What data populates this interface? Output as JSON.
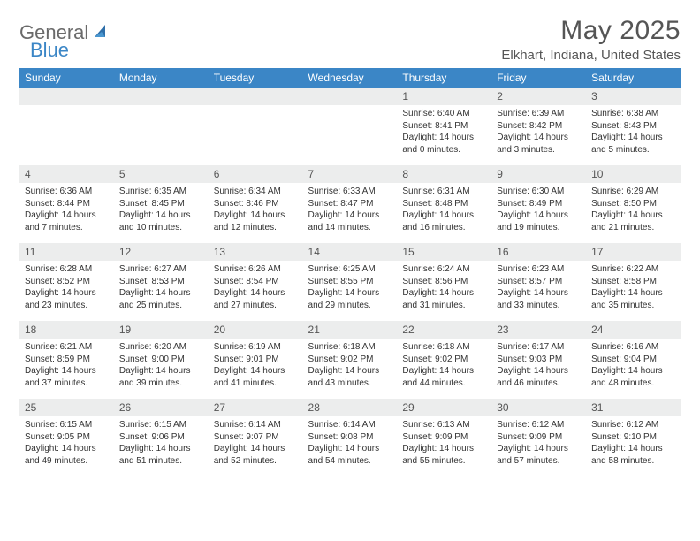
{
  "brand": {
    "part1": "General",
    "part2": "Blue"
  },
  "title": "May 2025",
  "location": "Elkhart, Indiana, United States",
  "colors": {
    "header_bg": "#3b86c6",
    "header_text": "#ffffff",
    "daynum_bg": "#eceded",
    "body_text": "#333333",
    "title_text": "#555555",
    "logo_general": "#6a6a6a",
    "logo_blue": "#3b86c6",
    "sail_fill": "#2f6fa9"
  },
  "layout": {
    "columns": 7,
    "rows": 5
  },
  "weekdays": [
    "Sunday",
    "Monday",
    "Tuesday",
    "Wednesday",
    "Thursday",
    "Friday",
    "Saturday"
  ],
  "days": [
    null,
    null,
    null,
    null,
    {
      "n": "1",
      "sunrise": "6:40 AM",
      "sunset": "8:41 PM",
      "day_h": 14,
      "day_m": 0
    },
    {
      "n": "2",
      "sunrise": "6:39 AM",
      "sunset": "8:42 PM",
      "day_h": 14,
      "day_m": 3
    },
    {
      "n": "3",
      "sunrise": "6:38 AM",
      "sunset": "8:43 PM",
      "day_h": 14,
      "day_m": 5
    },
    {
      "n": "4",
      "sunrise": "6:36 AM",
      "sunset": "8:44 PM",
      "day_h": 14,
      "day_m": 7
    },
    {
      "n": "5",
      "sunrise": "6:35 AM",
      "sunset": "8:45 PM",
      "day_h": 14,
      "day_m": 10
    },
    {
      "n": "6",
      "sunrise": "6:34 AM",
      "sunset": "8:46 PM",
      "day_h": 14,
      "day_m": 12
    },
    {
      "n": "7",
      "sunrise": "6:33 AM",
      "sunset": "8:47 PM",
      "day_h": 14,
      "day_m": 14
    },
    {
      "n": "8",
      "sunrise": "6:31 AM",
      "sunset": "8:48 PM",
      "day_h": 14,
      "day_m": 16
    },
    {
      "n": "9",
      "sunrise": "6:30 AM",
      "sunset": "8:49 PM",
      "day_h": 14,
      "day_m": 19
    },
    {
      "n": "10",
      "sunrise": "6:29 AM",
      "sunset": "8:50 PM",
      "day_h": 14,
      "day_m": 21
    },
    {
      "n": "11",
      "sunrise": "6:28 AM",
      "sunset": "8:52 PM",
      "day_h": 14,
      "day_m": 23
    },
    {
      "n": "12",
      "sunrise": "6:27 AM",
      "sunset": "8:53 PM",
      "day_h": 14,
      "day_m": 25
    },
    {
      "n": "13",
      "sunrise": "6:26 AM",
      "sunset": "8:54 PM",
      "day_h": 14,
      "day_m": 27
    },
    {
      "n": "14",
      "sunrise": "6:25 AM",
      "sunset": "8:55 PM",
      "day_h": 14,
      "day_m": 29
    },
    {
      "n": "15",
      "sunrise": "6:24 AM",
      "sunset": "8:56 PM",
      "day_h": 14,
      "day_m": 31
    },
    {
      "n": "16",
      "sunrise": "6:23 AM",
      "sunset": "8:57 PM",
      "day_h": 14,
      "day_m": 33
    },
    {
      "n": "17",
      "sunrise": "6:22 AM",
      "sunset": "8:58 PM",
      "day_h": 14,
      "day_m": 35
    },
    {
      "n": "18",
      "sunrise": "6:21 AM",
      "sunset": "8:59 PM",
      "day_h": 14,
      "day_m": 37
    },
    {
      "n": "19",
      "sunrise": "6:20 AM",
      "sunset": "9:00 PM",
      "day_h": 14,
      "day_m": 39
    },
    {
      "n": "20",
      "sunrise": "6:19 AM",
      "sunset": "9:01 PM",
      "day_h": 14,
      "day_m": 41
    },
    {
      "n": "21",
      "sunrise": "6:18 AM",
      "sunset": "9:02 PM",
      "day_h": 14,
      "day_m": 43
    },
    {
      "n": "22",
      "sunrise": "6:18 AM",
      "sunset": "9:02 PM",
      "day_h": 14,
      "day_m": 44
    },
    {
      "n": "23",
      "sunrise": "6:17 AM",
      "sunset": "9:03 PM",
      "day_h": 14,
      "day_m": 46
    },
    {
      "n": "24",
      "sunrise": "6:16 AM",
      "sunset": "9:04 PM",
      "day_h": 14,
      "day_m": 48
    },
    {
      "n": "25",
      "sunrise": "6:15 AM",
      "sunset": "9:05 PM",
      "day_h": 14,
      "day_m": 49
    },
    {
      "n": "26",
      "sunrise": "6:15 AM",
      "sunset": "9:06 PM",
      "day_h": 14,
      "day_m": 51
    },
    {
      "n": "27",
      "sunrise": "6:14 AM",
      "sunset": "9:07 PM",
      "day_h": 14,
      "day_m": 52
    },
    {
      "n": "28",
      "sunrise": "6:14 AM",
      "sunset": "9:08 PM",
      "day_h": 14,
      "day_m": 54
    },
    {
      "n": "29",
      "sunrise": "6:13 AM",
      "sunset": "9:09 PM",
      "day_h": 14,
      "day_m": 55
    },
    {
      "n": "30",
      "sunrise": "6:12 AM",
      "sunset": "9:09 PM",
      "day_h": 14,
      "day_m": 57
    },
    {
      "n": "31",
      "sunrise": "6:12 AM",
      "sunset": "9:10 PM",
      "day_h": 14,
      "day_m": 58
    }
  ],
  "labels": {
    "sunrise": "Sunrise:",
    "sunset": "Sunset:",
    "daylight": "Daylight:"
  }
}
